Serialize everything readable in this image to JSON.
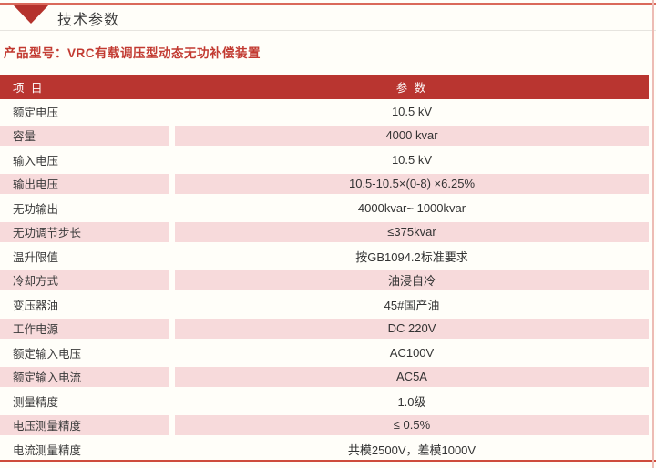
{
  "page": {
    "title": "技术参数",
    "product_model": "产品型号：VRC有载调压型动态无功补偿装置"
  },
  "colors": {
    "header_bg": "#B93530",
    "row_pink": "#F7DADB",
    "accent_red": "#C23A31",
    "top_line_red": "#DA695B",
    "bottom_line_red": "#CE4B3C",
    "triangle_red": "#B5332D"
  },
  "icons": {
    "triangle_marker": "down-triangle-icon"
  },
  "table": {
    "header": {
      "item": "项 目",
      "param": "参 数"
    },
    "rows": [
      {
        "item": "额定电压",
        "value": "10.5 kV"
      },
      {
        "item": "容量",
        "value": "4000 kvar"
      },
      {
        "item": "输入电压",
        "value": "10.5 kV"
      },
      {
        "item": "输出电压",
        "value": "10.5-10.5×(0-8) ×6.25%"
      },
      {
        "item": "无功输出",
        "value": "4000kvar~ 1000kvar"
      },
      {
        "item": "无功调节步长",
        "value": "≤375kvar"
      },
      {
        "item": "温升限值",
        "value": "按GB1094.2标准要求"
      },
      {
        "item": "冷却方式",
        "value": "油浸自冷"
      },
      {
        "item": "变压器油",
        "value": "45#国产油"
      },
      {
        "item": "工作电源",
        "value": "DC 220V"
      },
      {
        "item": "额定输入电压",
        "value": "AC100V"
      },
      {
        "item": "额定输入电流",
        "value": "AC5A"
      },
      {
        "item": "测量精度",
        "value": "1.0级"
      },
      {
        "item": "电压测量精度",
        "value": "≤ 0.5%"
      },
      {
        "item": "电流测量精度",
        "value": "共模2500V，差模1000V"
      }
    ]
  }
}
